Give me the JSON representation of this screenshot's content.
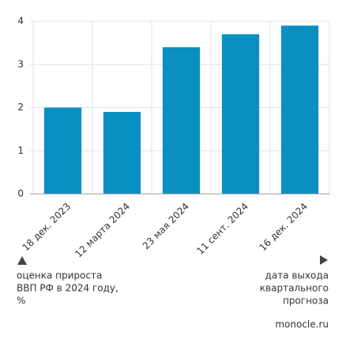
{
  "chart_data": {
    "type": "bar",
    "categories": [
      "18 дек. 2023",
      "12 марта 2024",
      "23 мая 2024",
      "11 сент. 2024",
      "16 дек. 2024"
    ],
    "values": [
      2.0,
      1.9,
      3.4,
      3.7,
      3.9
    ],
    "color": "#0a8fc1",
    "ylim": [
      0,
      4
    ],
    "yticks": [
      0,
      1,
      2,
      3,
      4
    ],
    "grid": true,
    "y_label": [
      "оценка прироста",
      "ВВП РФ в 2024 году,",
      "%"
    ],
    "x_label": [
      "дата выхода",
      "квартального",
      "прогноза"
    ],
    "source": "monocle.ru"
  }
}
